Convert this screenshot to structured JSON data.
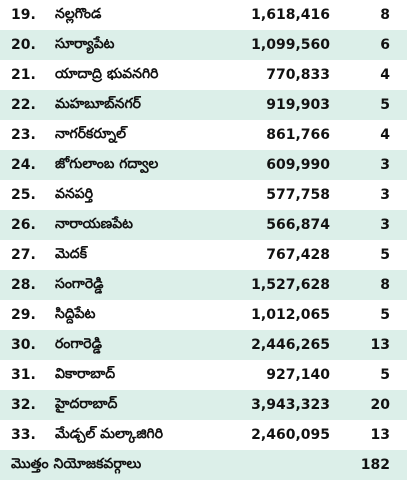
{
  "rows": [
    {
      "num": "19.",
      "name": "నల్లగొండ",
      "pop": "1,618,416",
      "seats": "8"
    },
    {
      "num": "20.",
      "name": "సూర్యాపేట",
      "pop": "1,099,560",
      "seats": "6"
    },
    {
      "num": "21.",
      "name": "యాదాద్రి భువనగిరి",
      "pop": "770,833",
      "seats": "4"
    },
    {
      "num": "22.",
      "name": "మహబూబ్‌నగర్",
      "pop": "919,903",
      "seats": "5"
    },
    {
      "num": "23.",
      "name": "నాగర్‌కర్నూల్",
      "pop": "861,766",
      "seats": "4"
    },
    {
      "num": "24.",
      "name": "జోగులాంబ గద్వాల",
      "pop": "609,990",
      "seats": "3"
    },
    {
      "num": "25.",
      "name": "వనపర్తి",
      "pop": "577,758",
      "seats": "3"
    },
    {
      "num": "26.",
      "name": "నారాయణపేట",
      "pop": "566,874",
      "seats": "3"
    },
    {
      "num": "27.",
      "name": "మెదక్",
      "pop": "767,428",
      "seats": "5"
    },
    {
      "num": "28.",
      "name": "సంగారెడ్డి",
      "pop": "1,527,628",
      "seats": "8"
    },
    {
      "num": "29.",
      "name": "సిద్దిపేట",
      "pop": "1,012,065",
      "seats": "5"
    },
    {
      "num": "30.",
      "name": "రంగారెడ్డి",
      "pop": "2,446,265",
      "seats": "13"
    },
    {
      "num": "31.",
      "name": "వికారాబాద్",
      "pop": "927,140",
      "seats": "5"
    },
    {
      "num": "32.",
      "name": "హైదరాబాద్",
      "pop": "3,943,323",
      "seats": "20"
    },
    {
      "num": "33.",
      "name": "మేడ్చల్ మల్కాజిగిరి",
      "pop": "2,460,095",
      "seats": "13"
    }
  ],
  "total": {
    "label": "మొత్తం నియోజకవర్గాలు",
    "seats": "182"
  },
  "colors": {
    "stripe": "#dcefe9",
    "background": "#ffffff"
  }
}
